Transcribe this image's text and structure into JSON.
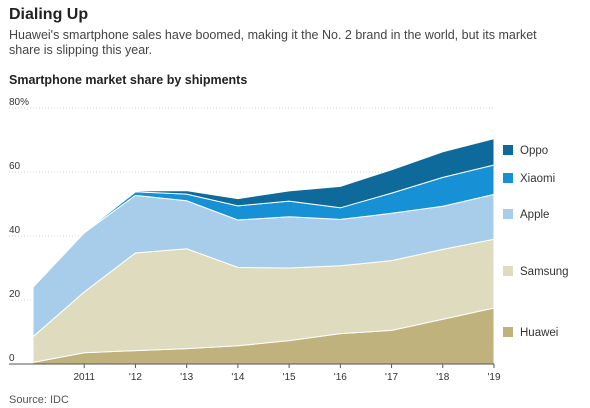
{
  "title": "Dialing Up",
  "subtitle": "Huawei's smartphone sales have boomed, making it the No. 2 brand in the world, but its market share is slipping this year.",
  "chart_title": "Smartphone market share by shipments",
  "source": "Source: IDC",
  "chart_data": {
    "type": "area",
    "stacked": true,
    "ylim": [
      0,
      80
    ],
    "yticks": [
      0,
      20,
      40,
      60,
      80
    ],
    "ytick_labels": [
      "0",
      "20",
      "40",
      "60",
      "80%"
    ],
    "x": [
      2010.0,
      2011.0,
      2012.0,
      2013.0,
      2014.0,
      2015.0,
      2016.0,
      2017.0,
      2018.0,
      2019.0
    ],
    "xticks": [
      2011,
      2012,
      2013,
      2014,
      2015,
      2016,
      2017,
      2018,
      2019
    ],
    "xtick_labels": [
      "2011",
      "'12",
      "'13",
      "'14",
      "'15",
      "'16",
      "'17",
      "'18",
      "'19"
    ],
    "grid": true,
    "legend_position": "right",
    "series": [
      {
        "name": "Huawei",
        "color": "#bfb27d",
        "values": [
          0.5,
          3.5,
          4.2,
          4.8,
          5.7,
          7.3,
          9.5,
          10.5,
          14.0,
          17.5
        ]
      },
      {
        "name": "Samsung",
        "color": "#dedbbe",
        "values": [
          8.0,
          19.0,
          30.5,
          31.2,
          24.5,
          22.7,
          21.2,
          21.8,
          21.8,
          21.5
        ]
      },
      {
        "name": "Apple",
        "color": "#a8cdea",
        "values": [
          15.5,
          18.5,
          18.0,
          15.0,
          14.8,
          16.0,
          14.5,
          14.8,
          13.5,
          14.0
        ]
      },
      {
        "name": "Xiaomi",
        "color": "#1791d5",
        "values": [
          0.0,
          0.2,
          1.1,
          2.1,
          4.4,
          4.9,
          3.6,
          6.3,
          9.0,
          9.2
        ]
      },
      {
        "name": "Oppo",
        "color": "#0e6a9a",
        "values": [
          0.0,
          0.0,
          0.3,
          1.1,
          2.3,
          3.2,
          6.7,
          7.3,
          8.0,
          8.2
        ]
      }
    ]
  }
}
